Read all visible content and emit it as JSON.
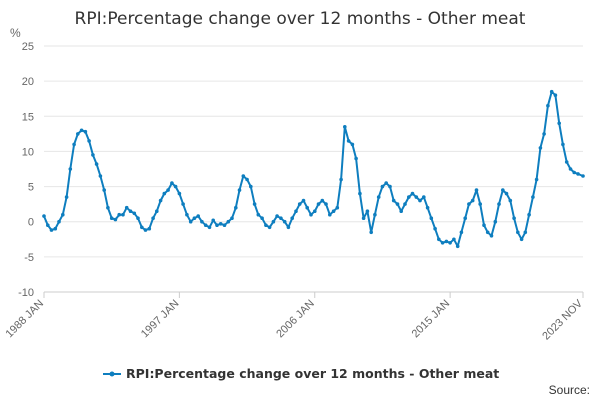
{
  "chart_data": {
    "type": "line",
    "title": "RPI:Percentage change over 12 months - Other meat",
    "ylabel": "%",
    "xlabel": "",
    "ylim": [
      -10,
      25
    ],
    "yticks": [
      "25",
      "20",
      "15",
      "10",
      "5",
      "0",
      "-5",
      "-10"
    ],
    "xticks": [
      "1988 JAN",
      "1997 JAN",
      "2006 JAN",
      "2015 JAN",
      "2023 NOV"
    ],
    "grid": true,
    "legend": "bottom-center",
    "color": "#0e7ebf",
    "series": [
      {
        "name": "RPI:Percentage change over 12 months - Other meat",
        "points": [
          [
            "1988-01",
            0.8
          ],
          [
            "1988-04",
            -0.5
          ],
          [
            "1988-07",
            -1.2
          ],
          [
            "1988-10",
            -1.0
          ],
          [
            "1989-01",
            0.0
          ],
          [
            "1989-04",
            1.0
          ],
          [
            "1989-07",
            3.5
          ],
          [
            "1989-10",
            7.5
          ],
          [
            "1990-01",
            11.0
          ],
          [
            "1990-04",
            12.5
          ],
          [
            "1990-07",
            13.0
          ],
          [
            "1990-10",
            12.8
          ],
          [
            "1991-01",
            11.5
          ],
          [
            "1991-04",
            9.5
          ],
          [
            "1991-07",
            8.2
          ],
          [
            "1991-10",
            6.5
          ],
          [
            "1992-01",
            4.5
          ],
          [
            "1992-04",
            2.0
          ],
          [
            "1992-07",
            0.5
          ],
          [
            "1992-10",
            0.3
          ],
          [
            "1993-01",
            1.0
          ],
          [
            "1993-04",
            1.0
          ],
          [
            "1993-07",
            2.0
          ],
          [
            "1993-10",
            1.5
          ],
          [
            "1994-01",
            1.2
          ],
          [
            "1994-04",
            0.5
          ],
          [
            "1994-07",
            -0.8
          ],
          [
            "1994-10",
            -1.2
          ],
          [
            "1995-01",
            -1.0
          ],
          [
            "1995-04",
            0.5
          ],
          [
            "1995-07",
            1.5
          ],
          [
            "1995-10",
            3.0
          ],
          [
            "1996-01",
            4.0
          ],
          [
            "1996-04",
            4.5
          ],
          [
            "1996-07",
            5.5
          ],
          [
            "1996-10",
            5.0
          ],
          [
            "1997-01",
            4.0
          ],
          [
            "1997-04",
            2.5
          ],
          [
            "1997-07",
            1.0
          ],
          [
            "1997-10",
            0.0
          ],
          [
            "1998-01",
            0.5
          ],
          [
            "1998-04",
            0.8
          ],
          [
            "1998-07",
            0.0
          ],
          [
            "1998-10",
            -0.5
          ],
          [
            "1999-01",
            -0.8
          ],
          [
            "1999-04",
            0.2
          ],
          [
            "1999-07",
            -0.5
          ],
          [
            "1999-10",
            -0.3
          ],
          [
            "2000-01",
            -0.5
          ],
          [
            "2000-04",
            0.0
          ],
          [
            "2000-07",
            0.5
          ],
          [
            "2000-10",
            2.0
          ],
          [
            "2001-01",
            4.5
          ],
          [
            "2001-04",
            6.5
          ],
          [
            "2001-07",
            6.0
          ],
          [
            "2001-10",
            5.0
          ],
          [
            "2002-01",
            2.5
          ],
          [
            "2002-04",
            1.0
          ],
          [
            "2002-07",
            0.5
          ],
          [
            "2002-10",
            -0.5
          ],
          [
            "2003-01",
            -0.8
          ],
          [
            "2003-04",
            0.0
          ],
          [
            "2003-07",
            0.8
          ],
          [
            "2003-10",
            0.5
          ],
          [
            "2004-01",
            0.0
          ],
          [
            "2004-04",
            -0.8
          ],
          [
            "2004-07",
            0.5
          ],
          [
            "2004-10",
            1.5
          ],
          [
            "2005-01",
            2.5
          ],
          [
            "2005-04",
            3.0
          ],
          [
            "2005-07",
            2.0
          ],
          [
            "2005-10",
            1.0
          ],
          [
            "2006-01",
            1.5
          ],
          [
            "2006-04",
            2.5
          ],
          [
            "2006-07",
            3.0
          ],
          [
            "2006-10",
            2.5
          ],
          [
            "2007-01",
            1.0
          ],
          [
            "2007-04",
            1.5
          ],
          [
            "2007-07",
            2.0
          ],
          [
            "2007-10",
            6.0
          ],
          [
            "2008-01",
            13.5
          ],
          [
            "2008-04",
            11.5
          ],
          [
            "2008-07",
            11.0
          ],
          [
            "2008-10",
            9.0
          ],
          [
            "2009-01",
            4.0
          ],
          [
            "2009-04",
            0.5
          ],
          [
            "2009-07",
            1.5
          ],
          [
            "2009-10",
            -1.5
          ],
          [
            "2010-01",
            1.0
          ],
          [
            "2010-04",
            3.5
          ],
          [
            "2010-07",
            5.0
          ],
          [
            "2010-10",
            5.5
          ],
          [
            "2011-01",
            5.0
          ],
          [
            "2011-04",
            3.0
          ],
          [
            "2011-07",
            2.5
          ],
          [
            "2011-10",
            1.5
          ],
          [
            "2012-01",
            2.5
          ],
          [
            "2012-04",
            3.5
          ],
          [
            "2012-07",
            4.0
          ],
          [
            "2012-10",
            3.5
          ],
          [
            "2013-01",
            3.0
          ],
          [
            "2013-04",
            3.5
          ],
          [
            "2013-07",
            2.0
          ],
          [
            "2013-10",
            0.5
          ],
          [
            "2014-01",
            -1.0
          ],
          [
            "2014-04",
            -2.5
          ],
          [
            "2014-07",
            -3.0
          ],
          [
            "2014-10",
            -2.8
          ],
          [
            "2015-01",
            -3.0
          ],
          [
            "2015-04",
            -2.5
          ],
          [
            "2015-07",
            -3.5
          ],
          [
            "2015-10",
            -1.5
          ],
          [
            "2016-01",
            0.5
          ],
          [
            "2016-04",
            2.5
          ],
          [
            "2016-07",
            3.0
          ],
          [
            "2016-10",
            4.5
          ],
          [
            "2017-01",
            2.5
          ],
          [
            "2017-04",
            -0.5
          ],
          [
            "2017-07",
            -1.5
          ],
          [
            "2017-10",
            -2.0
          ],
          [
            "2018-01",
            0.0
          ],
          [
            "2018-04",
            2.5
          ],
          [
            "2018-07",
            4.5
          ],
          [
            "2018-10",
            4.0
          ],
          [
            "2019-01",
            3.0
          ],
          [
            "2019-04",
            0.5
          ],
          [
            "2019-07",
            -1.5
          ],
          [
            "2019-10",
            -2.5
          ],
          [
            "2020-01",
            -1.5
          ],
          [
            "2020-04",
            1.0
          ],
          [
            "2020-07",
            3.5
          ],
          [
            "2020-10",
            6.0
          ],
          [
            "2021-01",
            10.5
          ],
          [
            "2021-04",
            12.5
          ],
          [
            "2021-07",
            16.5
          ],
          [
            "2021-10",
            18.5
          ],
          [
            "2022-01",
            18.0
          ],
          [
            "2022-04",
            14.0
          ],
          [
            "2022-07",
            11.0
          ],
          [
            "2022-10",
            8.5
          ],
          [
            "2023-01",
            7.5
          ],
          [
            "2023-04",
            7.0
          ],
          [
            "2023-07",
            6.8
          ],
          [
            "2023-11",
            6.5
          ]
        ]
      }
    ]
  },
  "footer": {
    "source_label": "Source:"
  }
}
